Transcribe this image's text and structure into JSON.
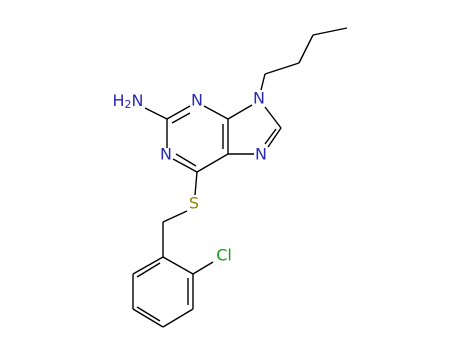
{
  "amine": {
    "parts": [
      "H",
      "2",
      "N"
    ]
  },
  "atoms": [
    {
      "label": "N"
    },
    {
      "label": "N"
    },
    {
      "label": "N"
    },
    {
      "label": "N"
    },
    {
      "label": "S"
    },
    {
      "label": "Cl"
    }
  ]
}
